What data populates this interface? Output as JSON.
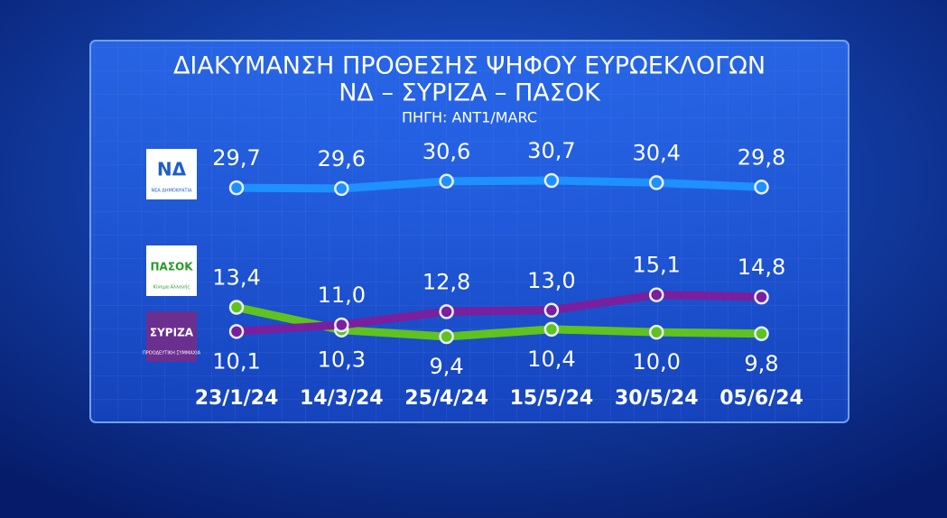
{
  "chart_data": {
    "type": "line",
    "title": "ΔΙΑΚΥΜΑΝΣΗ ΠΡΟΘΕΣΗΣ ΨΗΦΟΥ ΕΥΡΩΕΚΛΟΓΩΝ",
    "subtitle": "ΝΔ – ΣΥΡΙΖΑ – ΠΑΣΟΚ",
    "source": "ΠΗΓΗ: ANT1/MARC",
    "categories": [
      "23/1/24",
      "14/3/24",
      "25/4/24",
      "15/5/24",
      "30/5/24",
      "05/6/24"
    ],
    "series": [
      {
        "name": "ΝΔ",
        "logo_text": "ΝΕΑ ΔΗΜΟΚΡΑΤΙΑ",
        "color": "#1e90ff",
        "values": [
          29.7,
          29.6,
          30.6,
          30.7,
          30.4,
          29.8
        ],
        "value_labels": [
          "29,7",
          "29,6",
          "30,6",
          "30,7",
          "30,4",
          "29,8"
        ]
      },
      {
        "name": "ΠΑΣΟΚ",
        "logo_text": "Κίνημα Αλλαγής",
        "color": "#5fc21e",
        "values": [
          13.4,
          10.3,
          9.4,
          10.4,
          10.0,
          9.8
        ],
        "value_labels": [
          "13,4",
          "10,3",
          "9,4",
          "10,4",
          "10,0",
          "9,8"
        ]
      },
      {
        "name": "ΣΥΡΙΖΑ",
        "logo_text": "ΠΡΟΟΔΕΥΤΙΚΗ ΣΥΜΜΑΧΙΑ",
        "color": "#7a1f9e",
        "values": [
          10.1,
          11.0,
          12.8,
          13.0,
          15.1,
          14.8
        ],
        "value_labels": [
          "10,1",
          "11,0",
          "12,8",
          "13,0",
          "15,1",
          "14,8"
        ]
      }
    ]
  }
}
